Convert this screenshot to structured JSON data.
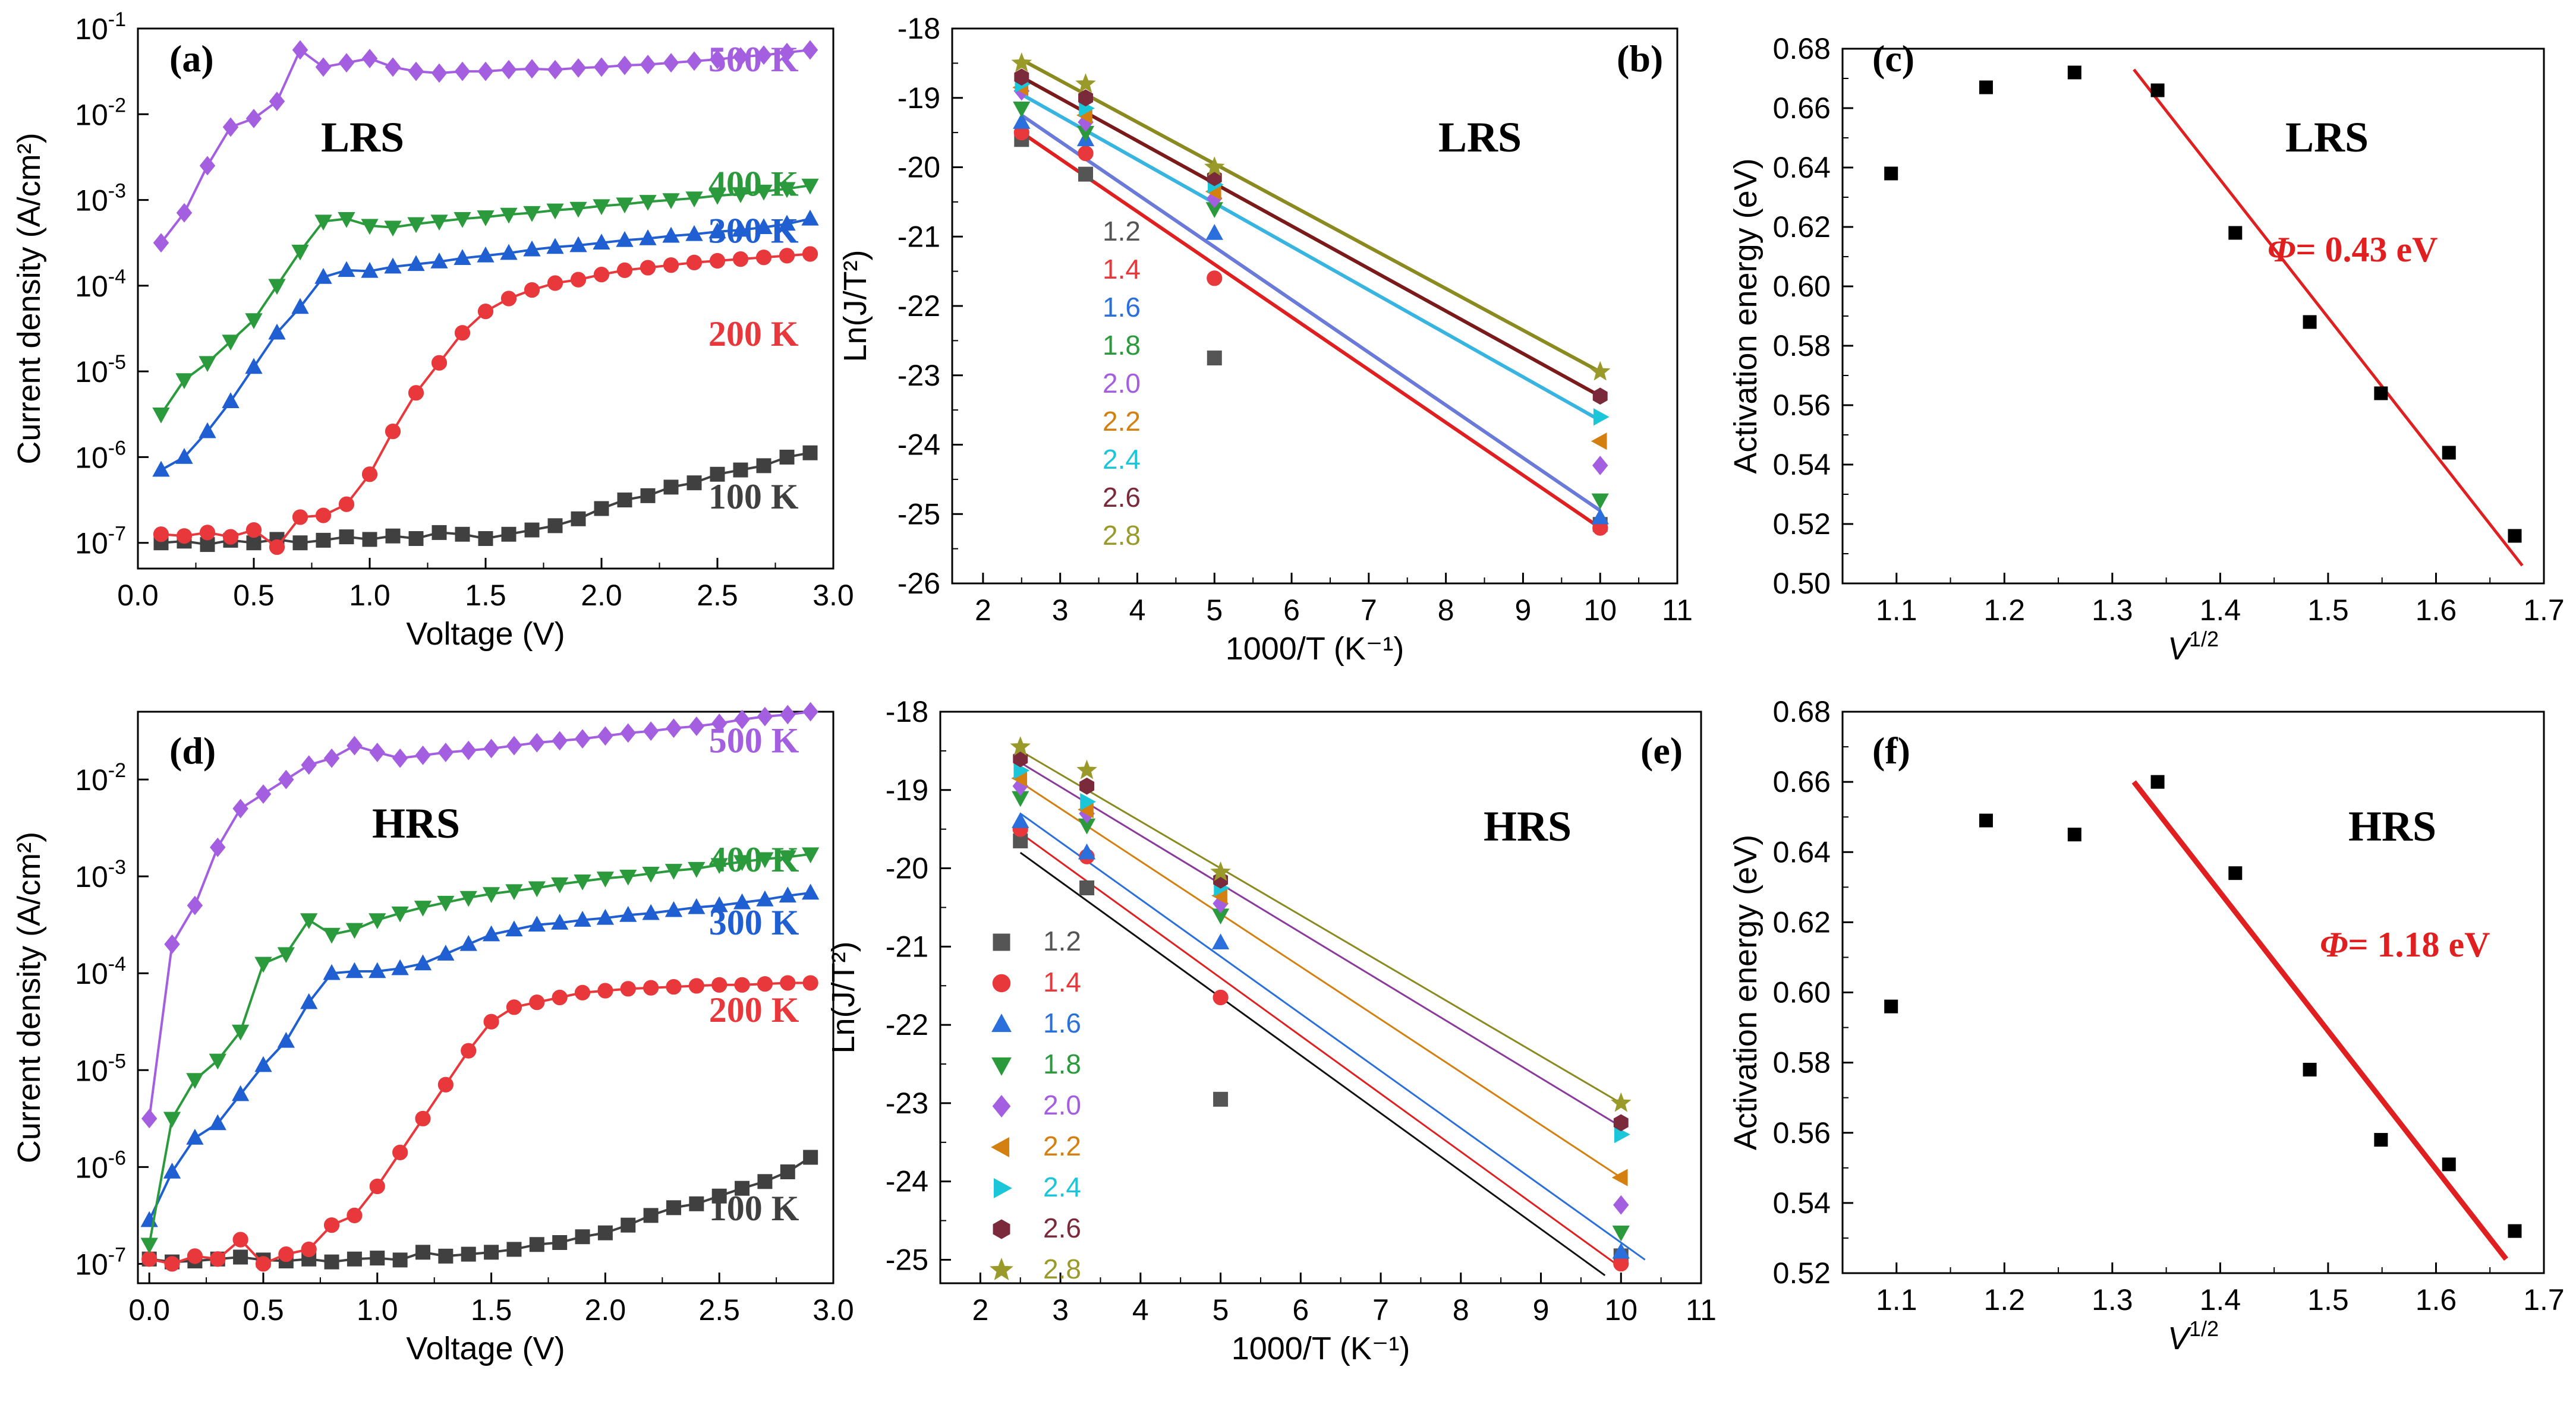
{
  "chart_data": [
    {
      "type": "line",
      "panel_label": "(a)",
      "state_label": "LRS",
      "xlabel": "Voltage (V)",
      "ylabel": "Current density (A/cm²)",
      "yscale": "log",
      "xlim": [
        0,
        3.0
      ],
      "ylim_exp": [
        -7.3,
        -1
      ],
      "xticks": [
        "0.0",
        "0.5",
        "1.0",
        "1.5",
        "2.0",
        "2.5",
        "3.0"
      ],
      "yticks": [
        "10",
        "10",
        "10",
        "10",
        "10",
        "10",
        "10"
      ],
      "ytick_exps": [
        "-7",
        "-6",
        "-5",
        "-4",
        "-3",
        "-2",
        "-1"
      ],
      "x": [
        0.1,
        0.2,
        0.3,
        0.4,
        0.5,
        0.6,
        0.7,
        0.8,
        0.9,
        1.0,
        1.1,
        1.2,
        1.3,
        1.4,
        1.5,
        1.6,
        1.7,
        1.8,
        1.9,
        2.0,
        2.1,
        2.2,
        2.3,
        2.4,
        2.5,
        2.6,
        2.7,
        2.8,
        2.9
      ],
      "series": [
        {
          "name": "100 K",
          "color": "#404040",
          "marker": "square",
          "label_pos": [
            2.85,
            -6.6
          ],
          "log10": [
            -7.0,
            -6.98,
            -7.02,
            -6.97,
            -7.0,
            -6.96,
            -7.0,
            -6.97,
            -6.93,
            -6.96,
            -6.92,
            -6.95,
            -6.88,
            -6.9,
            -6.95,
            -6.9,
            -6.85,
            -6.8,
            -6.72,
            -6.6,
            -6.5,
            -6.45,
            -6.35,
            -6.3,
            -6.2,
            -6.15,
            -6.1,
            -6.0,
            -5.95
          ]
        },
        {
          "name": "200 K",
          "color": "#e8383b",
          "marker": "circle",
          "label_pos": [
            2.85,
            -4.7
          ],
          "log10": [
            -6.9,
            -6.92,
            -6.88,
            -6.93,
            -6.85,
            -7.05,
            -6.7,
            -6.68,
            -6.55,
            -6.2,
            -5.7,
            -5.25,
            -4.9,
            -4.55,
            -4.3,
            -4.15,
            -4.05,
            -3.97,
            -3.93,
            -3.87,
            -3.82,
            -3.79,
            -3.76,
            -3.73,
            -3.71,
            -3.69,
            -3.67,
            -3.65,
            -3.63
          ]
        },
        {
          "name": "300 K",
          "color": "#1f5fd1",
          "marker": "triangle-up",
          "label_pos": [
            2.85,
            -3.5
          ],
          "log10": [
            -6.15,
            -6.0,
            -5.7,
            -5.35,
            -4.95,
            -4.55,
            -4.25,
            -3.9,
            -3.82,
            -3.83,
            -3.78,
            -3.75,
            -3.72,
            -3.68,
            -3.65,
            -3.62,
            -3.58,
            -3.55,
            -3.53,
            -3.5,
            -3.47,
            -3.45,
            -3.42,
            -3.4,
            -3.37,
            -3.35,
            -3.32,
            -3.28,
            -3.22
          ]
        },
        {
          "name": "400 K",
          "color": "#2b9a3c",
          "marker": "triangle-down",
          "label_pos": [
            2.85,
            -2.95
          ],
          "log10": [
            -5.5,
            -5.1,
            -4.9,
            -4.65,
            -4.4,
            -4.0,
            -3.6,
            -3.25,
            -3.22,
            -3.3,
            -3.32,
            -3.28,
            -3.25,
            -3.22,
            -3.2,
            -3.17,
            -3.15,
            -3.12,
            -3.1,
            -3.07,
            -3.05,
            -3.02,
            -3.0,
            -2.98,
            -2.95,
            -2.93,
            -2.9,
            -2.87,
            -2.83
          ]
        },
        {
          "name": "500 K",
          "color": "#a45ee0",
          "marker": "diamond",
          "label_pos": [
            2.85,
            -1.5
          ],
          "log10": [
            -3.5,
            -3.15,
            -2.6,
            -2.15,
            -2.05,
            -1.85,
            -1.25,
            -1.45,
            -1.4,
            -1.35,
            -1.45,
            -1.5,
            -1.52,
            -1.5,
            -1.5,
            -1.48,
            -1.47,
            -1.48,
            -1.46,
            -1.45,
            -1.43,
            -1.42,
            -1.4,
            -1.38,
            -1.36,
            -1.33,
            -1.31,
            -1.28,
            -1.25
          ]
        }
      ]
    },
    {
      "type": "scatter",
      "panel_label": "(b)",
      "state_label": "LRS",
      "xlabel": "1000/T (K⁻¹)",
      "ylabel": "Ln(J/T²)",
      "xlim": [
        1.6,
        11
      ],
      "ylim": [
        -26,
        -18
      ],
      "xticks": [
        "2",
        "3",
        "4",
        "5",
        "6",
        "7",
        "8",
        "9",
        "10",
        "11"
      ],
      "yticks": [
        "-26",
        "-25",
        "-24",
        "-23",
        "-22",
        "-21",
        "-20",
        "-19",
        "-18"
      ],
      "x": [
        2.5,
        3.33,
        5.0,
        10.0
      ],
      "series": [
        {
          "name": "1.2",
          "color": "#555555",
          "marker": "square",
          "y": [
            -19.6,
            -20.1,
            -22.75,
            -25.15
          ]
        },
        {
          "name": "1.4",
          "color": "#e8383b",
          "marker": "circle",
          "y": [
            -19.5,
            -19.8,
            -21.6,
            -25.2
          ]
        },
        {
          "name": "1.6",
          "color": "#2a6fdb",
          "marker": "triangle-up",
          "y": [
            -19.35,
            -19.6,
            -20.95,
            -25.05
          ]
        },
        {
          "name": "1.8",
          "color": "#2b9a3c",
          "marker": "triangle-down",
          "y": [
            -19.15,
            -19.5,
            -20.6,
            -24.8
          ]
        },
        {
          "name": "2.0",
          "color": "#a45ee0",
          "marker": "diamond",
          "y": [
            -18.9,
            -19.35,
            -20.45,
            -24.3
          ]
        },
        {
          "name": "2.2",
          "color": "#d48010",
          "marker": "triangle-left",
          "y": [
            -18.85,
            -19.25,
            -20.35,
            -23.95
          ]
        },
        {
          "name": "2.4",
          "color": "#1cc6d9",
          "marker": "triangle-right",
          "y": [
            -18.8,
            -19.15,
            -20.25,
            -23.6
          ]
        },
        {
          "name": "2.6",
          "color": "#7a2a3a",
          "marker": "hexagon",
          "y": [
            -18.7,
            -19.0,
            -20.15,
            -23.3
          ]
        },
        {
          "name": "2.8",
          "color": "#9a9a2a",
          "marker": "star",
          "y": [
            -18.5,
            -18.8,
            -20.0,
            -22.95
          ]
        }
      ],
      "fit_lines": [
        {
          "color": "#e02020",
          "x": [
            2.5,
            10.0
          ],
          "y": [
            -19.5,
            -25.2
          ]
        },
        {
          "color": "#6a7ad8",
          "x": [
            2.5,
            10.0
          ],
          "y": [
            -19.25,
            -24.95
          ]
        },
        {
          "color": "#37b5e0",
          "x": [
            2.5,
            10.0
          ],
          "y": [
            -18.95,
            -23.65
          ]
        },
        {
          "color": "#7a1a1a",
          "x": [
            2.5,
            10.0
          ],
          "y": [
            -18.7,
            -23.3
          ]
        },
        {
          "color": "#8a8a20",
          "x": [
            2.5,
            10.0
          ],
          "y": [
            -18.45,
            -22.95
          ]
        }
      ]
    },
    {
      "type": "scatter",
      "panel_label": "(c)",
      "state_label": "LRS",
      "xlabel": "V",
      "xlabel_sup": "1/2",
      "ylabel": "Activation energy (eV)",
      "xlim": [
        1.05,
        1.7
      ],
      "ylim": [
        0.5,
        0.68
      ],
      "xticks": [
        "1.1",
        "1.2",
        "1.3",
        "1.4",
        "1.5",
        "1.6",
        "1.7"
      ],
      "yticks": [
        "0.50",
        "0.52",
        "0.54",
        "0.56",
        "0.58",
        "0.60",
        "0.62",
        "0.64",
        "0.66",
        "0.68"
      ],
      "points": {
        "x": [
          1.095,
          1.183,
          1.265,
          1.342,
          1.414,
          1.483,
          1.549,
          1.612,
          1.673
        ],
        "y": [
          0.638,
          0.667,
          0.672,
          0.666,
          0.618,
          0.588,
          0.564,
          0.544,
          0.516
        ]
      },
      "fit_line": {
        "color": "#e02020",
        "x": [
          1.32,
          1.68
        ],
        "y": [
          0.673,
          0.506
        ]
      },
      "annotation": {
        "symbol": "Φ",
        "text": "= 0.43 eV",
        "color": "#e02020"
      }
    },
    {
      "type": "line",
      "panel_label": "(d)",
      "state_label": "HRS",
      "xlabel": "Voltage (V)",
      "ylabel": "Current density (A/cm²)",
      "yscale": "log",
      "xlim": [
        -0.05,
        3.0
      ],
      "ylim_exp": [
        -7.2,
        -1.3
      ],
      "xticks": [
        "0.0",
        "0.5",
        "1.0",
        "1.5",
        "2.0",
        "2.5",
        "3.0"
      ],
      "yticks": [
        "10",
        "10",
        "10",
        "10",
        "10",
        "10"
      ],
      "ytick_exps": [
        "-7",
        "-6",
        "-5",
        "-4",
        "-3",
        "-2"
      ],
      "x": [
        0.0,
        0.1,
        0.2,
        0.3,
        0.4,
        0.5,
        0.6,
        0.7,
        0.8,
        0.9,
        1.0,
        1.1,
        1.2,
        1.3,
        1.4,
        1.5,
        1.6,
        1.7,
        1.8,
        1.9,
        2.0,
        2.1,
        2.2,
        2.3,
        2.4,
        2.5,
        2.6,
        2.7,
        2.8,
        2.9
      ],
      "series": [
        {
          "name": "100 K",
          "color": "#404040",
          "marker": "square",
          "label_pos": [
            2.85,
            -6.55
          ],
          "log10": [
            -6.95,
            -6.98,
            -6.97,
            -6.95,
            -6.93,
            -6.96,
            -6.97,
            -6.95,
            -6.98,
            -6.95,
            -6.94,
            -6.96,
            -6.88,
            -6.92,
            -6.9,
            -6.88,
            -6.85,
            -6.8,
            -6.78,
            -6.72,
            -6.68,
            -6.6,
            -6.5,
            -6.42,
            -6.38,
            -6.3,
            -6.22,
            -6.15,
            -6.05,
            -5.9
          ]
        },
        {
          "name": "200 K",
          "color": "#e8383b",
          "marker": "circle",
          "label_pos": [
            2.85,
            -4.5
          ],
          "log10": [
            -6.95,
            -7.0,
            -6.92,
            -6.95,
            -6.75,
            -7.0,
            -6.9,
            -6.85,
            -6.6,
            -6.5,
            -6.2,
            -5.85,
            -5.5,
            -5.15,
            -4.8,
            -4.5,
            -4.35,
            -4.3,
            -4.25,
            -4.2,
            -4.18,
            -4.16,
            -4.15,
            -4.14,
            -4.13,
            -4.12,
            -4.12,
            -4.11,
            -4.1,
            -4.1
          ]
        },
        {
          "name": "300 K",
          "color": "#1f5fd1",
          "marker": "triangle-up",
          "label_pos": [
            2.85,
            -3.6
          ],
          "log10": [
            -6.55,
            -6.05,
            -5.7,
            -5.55,
            -5.25,
            -4.95,
            -4.7,
            -4.3,
            -4.0,
            -3.98,
            -3.98,
            -3.95,
            -3.9,
            -3.8,
            -3.7,
            -3.6,
            -3.55,
            -3.5,
            -3.48,
            -3.45,
            -3.43,
            -3.4,
            -3.38,
            -3.35,
            -3.32,
            -3.3,
            -3.27,
            -3.24,
            -3.2,
            -3.17
          ]
        },
        {
          "name": "400 K",
          "color": "#2b9a3c",
          "marker": "triangle-down",
          "label_pos": [
            2.85,
            -2.95
          ],
          "log10": [
            -6.8,
            -5.5,
            -5.1,
            -4.9,
            -4.6,
            -3.9,
            -3.8,
            -3.45,
            -3.6,
            -3.55,
            -3.45,
            -3.38,
            -3.32,
            -3.27,
            -3.22,
            -3.18,
            -3.15,
            -3.12,
            -3.08,
            -3.05,
            -3.02,
            -3.0,
            -2.97,
            -2.94,
            -2.92,
            -2.88,
            -2.85,
            -2.82,
            -2.8,
            -2.77
          ]
        },
        {
          "name": "500 K",
          "color": "#a45ee0",
          "marker": "diamond",
          "label_pos": [
            2.85,
            -1.72
          ],
          "log10": [
            -5.5,
            -3.7,
            -3.3,
            -2.7,
            -2.3,
            -2.15,
            -2.0,
            -1.85,
            -1.78,
            -1.65,
            -1.72,
            -1.78,
            -1.75,
            -1.72,
            -1.7,
            -1.68,
            -1.65,
            -1.62,
            -1.6,
            -1.58,
            -1.55,
            -1.52,
            -1.5,
            -1.47,
            -1.45,
            -1.42,
            -1.38,
            -1.35,
            -1.33,
            -1.3
          ]
        }
      ]
    },
    {
      "type": "scatter",
      "panel_label": "(e)",
      "state_label": "HRS",
      "xlabel": "1000/T (K⁻¹)",
      "ylabel": "Ln(J/T²)",
      "xlim": [
        1.5,
        11
      ],
      "ylim": [
        -25.3,
        -18
      ],
      "xticks": [
        "2",
        "3",
        "4",
        "5",
        "6",
        "7",
        "8",
        "9",
        "10",
        "11"
      ],
      "yticks": [
        "-25",
        "-24",
        "-23",
        "-22",
        "-21",
        "-20",
        "-19",
        "-18"
      ],
      "x": [
        2.5,
        3.33,
        5.0,
        10.0
      ],
      "series": [
        {
          "name": "1.2",
          "color": "#555555",
          "marker": "square",
          "y": [
            -19.65,
            -20.25,
            -22.95,
            -24.95
          ]
        },
        {
          "name": "1.4",
          "color": "#e8383b",
          "marker": "circle",
          "y": [
            -19.5,
            -19.85,
            -21.65,
            -25.05
          ]
        },
        {
          "name": "1.6",
          "color": "#2a6fdb",
          "marker": "triangle-up",
          "y": [
            -19.4,
            -19.8,
            -20.95,
            -24.9
          ]
        },
        {
          "name": "1.8",
          "color": "#2b9a3c",
          "marker": "triangle-down",
          "y": [
            -19.1,
            -19.45,
            -20.6,
            -24.65
          ]
        },
        {
          "name": "2.0",
          "color": "#a45ee0",
          "marker": "diamond",
          "y": [
            -18.95,
            -19.3,
            -20.45,
            -24.3
          ]
        },
        {
          "name": "2.2",
          "color": "#d48010",
          "marker": "triangle-left",
          "y": [
            -18.85,
            -19.25,
            -20.35,
            -23.95
          ]
        },
        {
          "name": "2.4",
          "color": "#1cc6d9",
          "marker": "triangle-right",
          "y": [
            -18.75,
            -19.15,
            -20.25,
            -23.4
          ]
        },
        {
          "name": "2.6",
          "color": "#7a2a3a",
          "marker": "hexagon",
          "y": [
            -18.6,
            -18.95,
            -20.15,
            -23.25
          ]
        },
        {
          "name": "2.8",
          "color": "#9a9a2a",
          "marker": "star",
          "y": [
            -18.45,
            -18.75,
            -20.05,
            -23.0
          ]
        }
      ],
      "fit_lines": [
        {
          "color": "#111111",
          "x": [
            2.5,
            9.8
          ],
          "y": [
            -19.8,
            -25.2
          ]
        },
        {
          "color": "#e02020",
          "x": [
            2.5,
            10.0
          ],
          "y": [
            -19.55,
            -25.1
          ]
        },
        {
          "color": "#2a6fdb",
          "x": [
            2.5,
            10.3
          ],
          "y": [
            -19.3,
            -25.0
          ]
        },
        {
          "color": "#d48010",
          "x": [
            2.5,
            10.0
          ],
          "y": [
            -18.9,
            -23.95
          ]
        },
        {
          "color": "#8a3a9a",
          "x": [
            2.5,
            10.0
          ],
          "y": [
            -18.65,
            -23.3
          ]
        },
        {
          "color": "#8a8a20",
          "x": [
            2.5,
            10.0
          ],
          "y": [
            -18.5,
            -23.0
          ]
        }
      ]
    },
    {
      "type": "scatter",
      "panel_label": "(f)",
      "state_label": "HRS",
      "xlabel": "V",
      "xlabel_sup": "1/2",
      "ylabel": "Activation energy (eV)",
      "xlim": [
        1.05,
        1.7
      ],
      "ylim": [
        0.52,
        0.68
      ],
      "xticks": [
        "1.1",
        "1.2",
        "1.3",
        "1.4",
        "1.5",
        "1.6",
        "1.7"
      ],
      "yticks": [
        "0.52",
        "0.54",
        "0.56",
        "0.58",
        "0.60",
        "0.62",
        "0.64",
        "0.66",
        "0.68"
      ],
      "points": {
        "x": [
          1.095,
          1.183,
          1.265,
          1.342,
          1.414,
          1.483,
          1.549,
          1.612,
          1.673
        ],
        "y": [
          0.596,
          0.649,
          0.645,
          0.66,
          0.634,
          0.578,
          0.558,
          0.551,
          0.532
        ]
      },
      "fit_line": {
        "color": "#e02020",
        "x": [
          1.32,
          1.665
        ],
        "y": [
          0.66,
          0.524
        ]
      },
      "annotation": {
        "symbol": "Φ",
        "text": "= 1.18 eV",
        "color": "#e02020"
      }
    }
  ]
}
